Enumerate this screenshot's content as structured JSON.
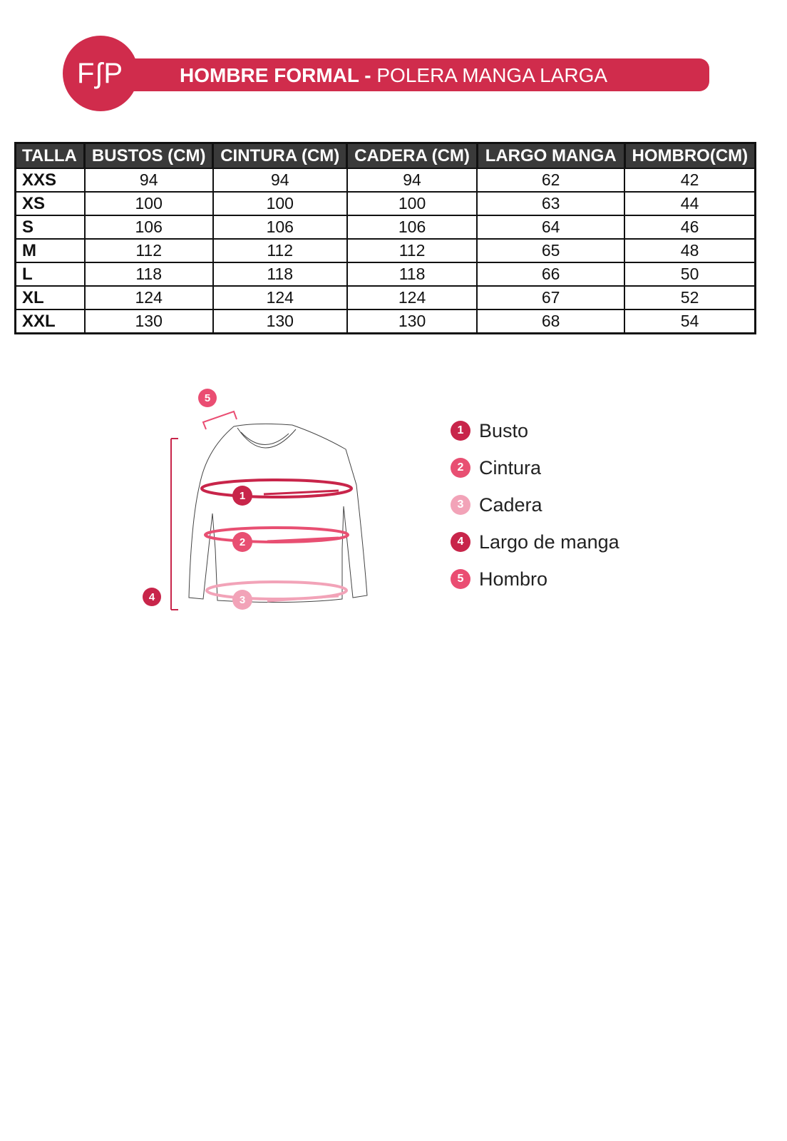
{
  "header": {
    "logo": "FʃP",
    "title_bold": "HOMBRE FORMAL -",
    "title_light": "POLERA MANGA LARGA",
    "brand_color": "#d02c4c"
  },
  "table": {
    "headers": [
      "TALLA",
      "BUSTOS (CM)",
      "CINTURA (CM)",
      "CADERA (CM)",
      "LARGO MANGA",
      "HOMBRO(CM)"
    ],
    "rows": [
      [
        "XXS",
        "94",
        "94",
        "94",
        "62",
        "42"
      ],
      [
        "XS",
        "100",
        "100",
        "100",
        "63",
        "44"
      ],
      [
        "S",
        "106",
        "106",
        "106",
        "64",
        "46"
      ],
      [
        "M",
        "112",
        "112",
        "112",
        "65",
        "48"
      ],
      [
        "L",
        "118",
        "118",
        "118",
        "66",
        "50"
      ],
      [
        "XL",
        "124",
        "124",
        "124",
        "67",
        "52"
      ],
      [
        "XXL",
        "130",
        "130",
        "130",
        "68",
        "54"
      ]
    ]
  },
  "legend": [
    {
      "num": "1",
      "label": "Busto",
      "color": "#c8254a"
    },
    {
      "num": "2",
      "label": "Cintura",
      "color": "#e84f72"
    },
    {
      "num": "3",
      "label": "Cadera",
      "color": "#f2a3b8"
    },
    {
      "num": "4",
      "label": "Largo de manga",
      "color": "#c8254a"
    },
    {
      "num": "5",
      "label": "Hombro",
      "color": "#ea4d72"
    }
  ]
}
